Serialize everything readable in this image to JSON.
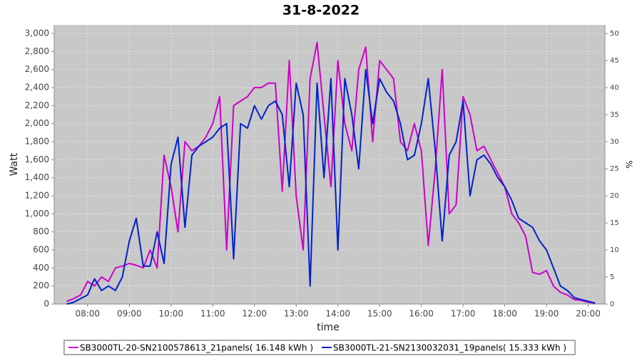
{
  "chart_data": {
    "type": "line",
    "title": "31-8-2022",
    "xlabel": "time",
    "ylabel": "Watt",
    "y2label": "%",
    "x": [
      "07:30",
      "07:40",
      "07:50",
      "08:00",
      "08:10",
      "08:20",
      "08:30",
      "08:40",
      "08:50",
      "09:00",
      "09:10",
      "09:20",
      "09:30",
      "09:40",
      "09:50",
      "10:00",
      "10:10",
      "10:20",
      "10:30",
      "10:40",
      "10:50",
      "11:00",
      "11:10",
      "11:20",
      "11:30",
      "11:40",
      "11:50",
      "12:00",
      "12:10",
      "12:20",
      "12:30",
      "12:40",
      "12:50",
      "13:00",
      "13:10",
      "13:20",
      "13:30",
      "13:40",
      "13:50",
      "14:00",
      "14:10",
      "14:20",
      "14:30",
      "14:40",
      "14:50",
      "15:00",
      "15:10",
      "15:20",
      "15:30",
      "15:40",
      "15:50",
      "16:00",
      "16:10",
      "16:20",
      "16:30",
      "16:40",
      "16:50",
      "17:00",
      "17:10",
      "17:20",
      "17:30",
      "17:40",
      "17:50",
      "18:00",
      "18:10",
      "18:20",
      "18:30",
      "18:40",
      "18:50",
      "19:00",
      "19:10",
      "19:20",
      "19:30",
      "19:40",
      "19:50",
      "20:00",
      "20:10"
    ],
    "series": [
      {
        "name": "SB3000TL-20-SN2100578613_21panels( 16.148 kWh )",
        "color": "#cc00cc",
        "values": [
          30,
          60,
          100,
          250,
          200,
          300,
          250,
          400,
          420,
          450,
          430,
          400,
          600,
          400,
          1650,
          1300,
          800,
          1800,
          1700,
          1750,
          1850,
          2000,
          2300,
          600,
          2200,
          2250,
          2300,
          2400,
          2400,
          2450,
          2450,
          1250,
          2700,
          1200,
          600,
          2500,
          2900,
          2100,
          1300,
          2700,
          2000,
          1700,
          2600,
          2850,
          1800,
          2700,
          2600,
          2500,
          1800,
          1700,
          2000,
          1700,
          650,
          1500,
          2600,
          1000,
          1100,
          2300,
          2100,
          1700,
          1750,
          1600,
          1450,
          1300,
          1000,
          900,
          750,
          350,
          330,
          370,
          200,
          130,
          100,
          50,
          40,
          20,
          10
        ]
      },
      {
        "name": "SB3000TL-21-SN2130032031_19panels( 15.333 kWh )",
        "color": "#0022cc",
        "values": [
          0,
          20,
          60,
          100,
          280,
          150,
          200,
          150,
          300,
          700,
          950,
          420,
          420,
          800,
          450,
          1550,
          1850,
          850,
          1650,
          1750,
          1800,
          1850,
          1950,
          2000,
          500,
          2000,
          1950,
          2200,
          2050,
          2200,
          2250,
          2100,
          1300,
          2450,
          2100,
          200,
          2450,
          1400,
          2500,
          600,
          2500,
          2100,
          1500,
          2600,
          2000,
          2500,
          2350,
          2250,
          2000,
          1600,
          1650,
          2000,
          2500,
          1700,
          700,
          1650,
          1800,
          2250,
          1200,
          1600,
          1650,
          1550,
          1400,
          1300,
          1150,
          950,
          900,
          850,
          700,
          600,
          400,
          200,
          150,
          70,
          50,
          30,
          10
        ]
      }
    ],
    "xlim": [
      "07:12",
      "20:24"
    ],
    "xticks": [
      "08:00",
      "09:00",
      "10:00",
      "11:00",
      "12:00",
      "13:00",
      "14:00",
      "15:00",
      "16:00",
      "17:00",
      "18:00",
      "19:00",
      "20:00"
    ],
    "ylim": [
      0,
      3095
    ],
    "yticks": [
      0,
      200,
      400,
      600,
      800,
      {
        "value": 1000,
        "label": "1,000"
      },
      {
        "value": 1200,
        "label": "1,200"
      },
      {
        "value": 1400,
        "label": "1,400"
      },
      {
        "value": 1600,
        "label": "1,600"
      },
      {
        "value": 1800,
        "label": "1,800"
      },
      {
        "value": 2000,
        "label": "2,000"
      },
      {
        "value": 2200,
        "label": "2,200"
      },
      {
        "value": 2400,
        "label": "2,400"
      },
      {
        "value": 2600,
        "label": "2,600"
      },
      {
        "value": 2800,
        "label": "2,800"
      },
      {
        "value": 3000,
        "label": "3,000"
      }
    ],
    "y2lim": [
      0,
      51.6
    ],
    "y2ticks": [
      0,
      5,
      10,
      15,
      20,
      25,
      30,
      35,
      40,
      45,
      50
    ],
    "grid": true,
    "legend": "bottom"
  }
}
